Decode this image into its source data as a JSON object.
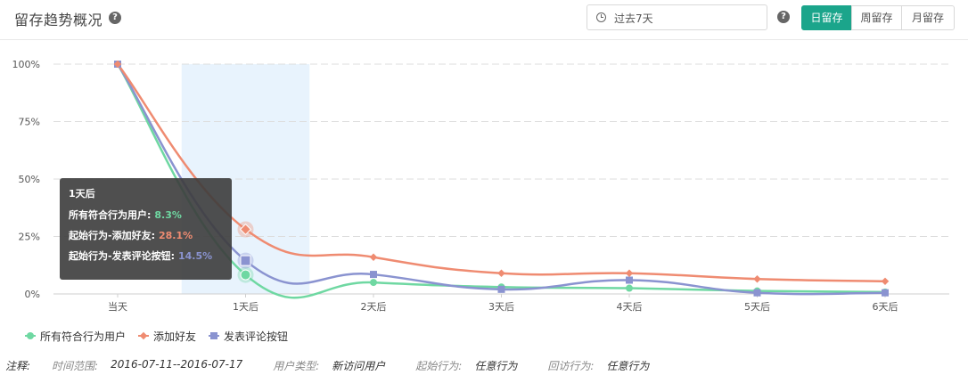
{
  "header": {
    "title": "留存趋势概况",
    "date_range": "过去7天",
    "tabs": [
      "日留存",
      "周留存",
      "月留存"
    ],
    "active_tab": 0
  },
  "chart_data": {
    "type": "line",
    "categories": [
      "当天",
      "1天后",
      "2天后",
      "3天后",
      "4天后",
      "5天后",
      "6天后"
    ],
    "ylim": [
      0,
      100
    ],
    "yticks": [
      "0%",
      "25%",
      "50%",
      "75%",
      "100%"
    ],
    "grid": true,
    "legend_position": "bottom-left",
    "highlight_index": 1,
    "series": [
      {
        "name": "所有符合行为用户",
        "color": "#6fd8a2",
        "marker": "circle",
        "values": [
          100,
          8.3,
          5,
          3,
          2.5,
          1.3,
          0.8
        ]
      },
      {
        "name": "添加好友",
        "color": "#ef8b71",
        "marker": "diamond",
        "values": [
          100,
          28.1,
          16,
          9,
          9,
          6.5,
          5.5
        ]
      },
      {
        "name": "发表评论按钮",
        "color": "#8a93d0",
        "marker": "square",
        "values": [
          100,
          14.5,
          8.5,
          2,
          6,
          0.5,
          0.5
        ]
      }
    ]
  },
  "tooltip": {
    "title": "1天后",
    "rows": [
      {
        "label": "所有符合行为用户:",
        "value": "8.3%",
        "color": "#6fd8a2"
      },
      {
        "label": "起始行为-添加好友:",
        "value": "28.1%",
        "color": "#ef8b71"
      },
      {
        "label": "起始行为-发表评论按钮:",
        "value": "14.5%",
        "color": "#8a93d0"
      }
    ]
  },
  "notes": {
    "label": "注释:",
    "items": [
      {
        "key": "时间范围:",
        "value": "2016-07-11--2016-07-17"
      },
      {
        "key": "用户类型:",
        "value": "新访问用户"
      },
      {
        "key": "起始行为:",
        "value": "任意行为"
      },
      {
        "key": "回访行为:",
        "value": "任意行为"
      }
    ]
  }
}
